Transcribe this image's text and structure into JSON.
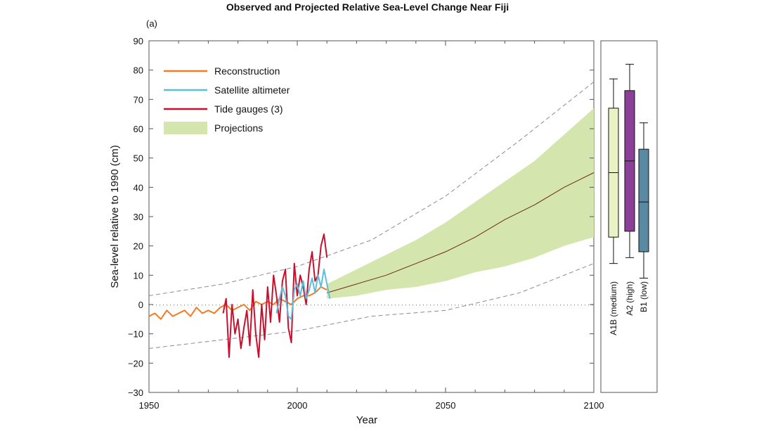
{
  "title": "Observed and Projected Relative Sea-Level Change Near Fiji",
  "panel_label": "(a)",
  "colors": {
    "reconstruction": "#f07c23",
    "satellite": "#5bbfdc",
    "tide": "#c8102e",
    "projection_fill": "#d4e6ad",
    "projection_line": "#6b2a1e",
    "dashed": "#8a8a8a",
    "a1b": "#e8f2c4",
    "a2": "#8b3f96",
    "b1": "#5a8aa3"
  },
  "chart_data": [
    {
      "type": "line",
      "title": "Observed and Projected Relative Sea-Level Change Near Fiji",
      "xlabel": "Year",
      "ylabel": "Sea-level relative to 1990 (cm)",
      "xlim": [
        1950,
        2100
      ],
      "ylim": [
        -30,
        90
      ],
      "xticks": [
        "1950",
        "2000",
        "2050",
        "2100"
      ],
      "yticks": [
        "90",
        "80",
        "70",
        "60",
        "50",
        "40",
        "30",
        "20",
        "10",
        "0",
        "−10",
        "−20",
        "−30"
      ],
      "legend": [
        {
          "label": "Reconstruction",
          "kind": "line",
          "color_key": "reconstruction"
        },
        {
          "label": "Satellite altimeter",
          "kind": "line",
          "color_key": "satellite"
        },
        {
          "label": "Tide gauges (3)",
          "kind": "line",
          "color_key": "tide"
        },
        {
          "label": "Projections",
          "kind": "area",
          "color_key": "projection_fill"
        }
      ],
      "legend_position": "top-left",
      "zero_line": "dotted",
      "series": [
        {
          "name": "Reconstruction",
          "x": [
            1950,
            1952,
            1954,
            1956,
            1958,
            1960,
            1962,
            1964,
            1966,
            1968,
            1970,
            1972,
            1974,
            1976,
            1978,
            1980,
            1982,
            1984,
            1986,
            1988,
            1990,
            1992,
            1994,
            1996,
            1998,
            2000,
            2002,
            2004,
            2006,
            2008,
            2010
          ],
          "y": [
            -4,
            -3,
            -5,
            -2,
            -4,
            -3,
            -2,
            -4,
            -1,
            -3,
            -2,
            -3,
            -1,
            0,
            -2,
            -1,
            0,
            -2,
            1,
            0,
            1,
            0,
            2,
            1,
            0,
            2,
            3,
            3,
            4,
            6,
            5
          ]
        },
        {
          "name": "Satellite altimeter",
          "x": [
            1993,
            1994,
            1995,
            1996,
            1997,
            1998,
            1999,
            2000,
            2001,
            2002,
            2003,
            2004,
            2005,
            2006,
            2007,
            2008,
            2009,
            2010,
            2011
          ],
          "y": [
            -3,
            2,
            6,
            3,
            -4,
            -5,
            5,
            7,
            3,
            8,
            2,
            5,
            9,
            4,
            10,
            6,
            12,
            7,
            2
          ]
        },
        {
          "name": "Tide gauges (3)",
          "x": [
            1975,
            1976,
            1977,
            1978,
            1979,
            1980,
            1981,
            1982,
            1983,
            1984,
            1985,
            1986,
            1987,
            1988,
            1989,
            1990,
            1991,
            1992,
            1993,
            1994,
            1995,
            1996,
            1997,
            1998,
            1999,
            2000,
            2001,
            2002,
            2003,
            2004,
            2005,
            2006,
            2007,
            2008,
            2009,
            2010
          ],
          "y": [
            -3,
            2,
            -18,
            0,
            -10,
            -5,
            -15,
            -8,
            -2,
            -14,
            5,
            -10,
            -18,
            0,
            -12,
            6,
            -6,
            10,
            3,
            -6,
            8,
            12,
            -8,
            -13,
            14,
            3,
            10,
            6,
            0,
            12,
            18,
            8,
            10,
            20,
            24,
            16
          ]
        },
        {
          "name": "Projections",
          "x": [
            2010,
            2020,
            2030,
            2040,
            2050,
            2060,
            2070,
            2080,
            2090,
            2100
          ],
          "y": [
            4,
            7,
            10,
            14,
            18,
            23,
            29,
            34,
            40,
            45
          ],
          "y_low": [
            2,
            3,
            5,
            6,
            8,
            11,
            13,
            16,
            20,
            23
          ],
          "y_high": [
            7,
            12,
            17,
            22,
            28,
            35,
            42,
            49,
            58,
            67
          ]
        },
        {
          "name": "Upper bound (dashed)",
          "x": [
            1950,
            1975,
            2000,
            2025,
            2050,
            2075,
            2100
          ],
          "y": [
            3,
            7,
            13,
            22,
            37,
            56,
            76
          ]
        },
        {
          "name": "Lower bound (dashed)",
          "x": [
            1950,
            1975,
            2000,
            2025,
            2050,
            2075,
            2100
          ],
          "y": [
            -15,
            -12,
            -9,
            -4,
            -2,
            4,
            14
          ]
        }
      ]
    },
    {
      "type": "box",
      "ylim": [
        -30,
        90
      ],
      "boxes": [
        {
          "label": "A1B (medium)",
          "whisker_low": 14,
          "q1": 23,
          "median": 45,
          "q3": 67,
          "whisker_high": 77,
          "color_key": "a1b"
        },
        {
          "label": "A2 (high)",
          "whisker_low": 16,
          "q1": 25,
          "median": 49,
          "q3": 73,
          "whisker_high": 82,
          "color_key": "a2"
        },
        {
          "label": "B1 (low)",
          "whisker_low": 9,
          "q1": 18,
          "median": 35,
          "q3": 53,
          "whisker_high": 62,
          "color_key": "b1"
        }
      ]
    }
  ]
}
